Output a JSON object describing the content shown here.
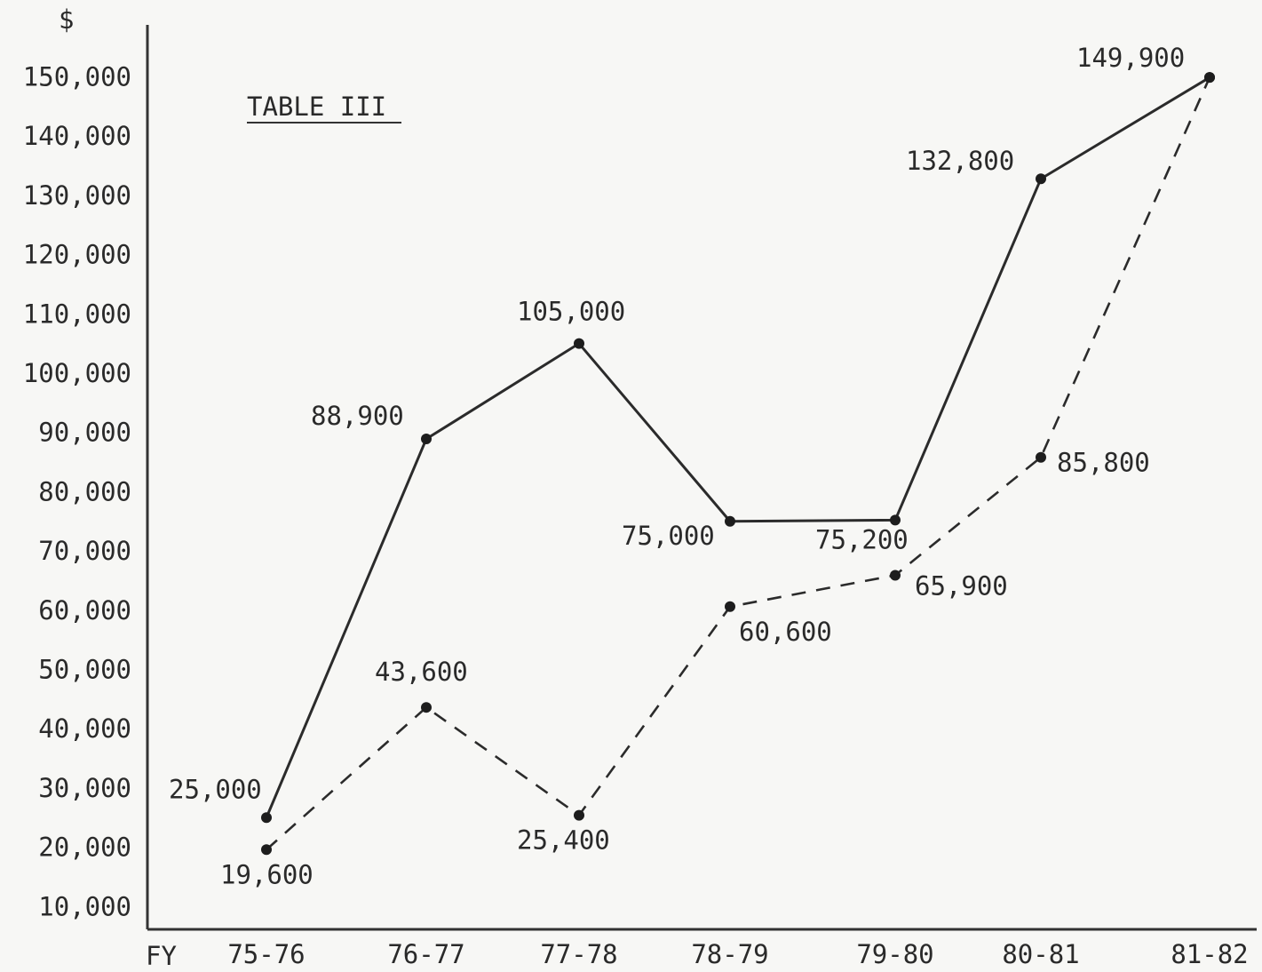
{
  "chart_data": {
    "type": "line",
    "title": "TABLE III",
    "ylabel": "$",
    "x_prefix": "FY",
    "categories": [
      "75-76",
      "76-77",
      "77-78",
      "78-79",
      "79-80",
      "80-81",
      "81-82"
    ],
    "yticks": [
      "10,000",
      "20,000",
      "30,000",
      "40,000",
      "50,000",
      "60,000",
      "70,000",
      "80,000",
      "90,000",
      "100,000",
      "110,000",
      "120,000",
      "130,000",
      "140,000",
      "150,000"
    ],
    "ylim": [
      0,
      150000
    ],
    "grid": false,
    "series": [
      {
        "style": "solid",
        "values": [
          25000,
          88900,
          105000,
          75000,
          75200,
          132800,
          149900
        ],
        "labels": [
          "25,000",
          "88,900",
          "105,000",
          "75,000",
          "75,200",
          "132,800",
          "149,900"
        ]
      },
      {
        "style": "dashed",
        "values": [
          19600,
          43600,
          25400,
          60600,
          65900,
          85800,
          149900
        ],
        "labels": [
          "19,600",
          "43,600",
          "25,400",
          "60,600",
          "65,900",
          "85,800",
          ""
        ]
      }
    ]
  }
}
